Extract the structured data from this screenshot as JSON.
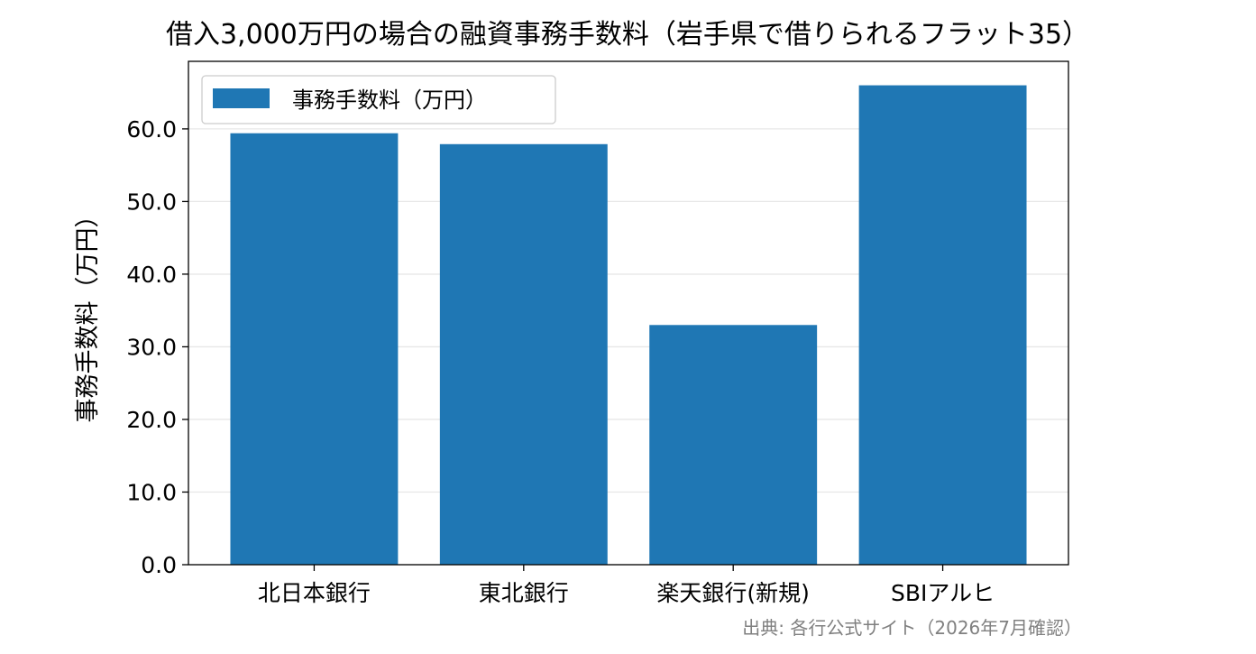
{
  "chart_data": {
    "type": "bar",
    "title": "借入3,000万円の場合の融資事務手数料（岩手県で借りられるフラット35）",
    "ylabel": "事務手数料（万円）",
    "xlabel": "",
    "categories": [
      "北日本銀行",
      "東北銀行",
      "楽天銀行(新規)",
      "SBIアルヒ"
    ],
    "series": [
      {
        "name": "事務手数料（万円）",
        "values": [
          59.4,
          57.9,
          33.0,
          66.0
        ],
        "color": "#1f77b4"
      }
    ],
    "ylim": [
      0,
      69.3
    ],
    "yticks": [
      0,
      10,
      20,
      30,
      40,
      50,
      60
    ],
    "ytick_labels": [
      "0.0",
      "10.0",
      "20.0",
      "30.0",
      "40.0",
      "50.0",
      "60.0"
    ],
    "grid": "horizontal",
    "legend_position": "upper-left",
    "source": "出典: 各行公式サイト（2026年7月確認）"
  }
}
